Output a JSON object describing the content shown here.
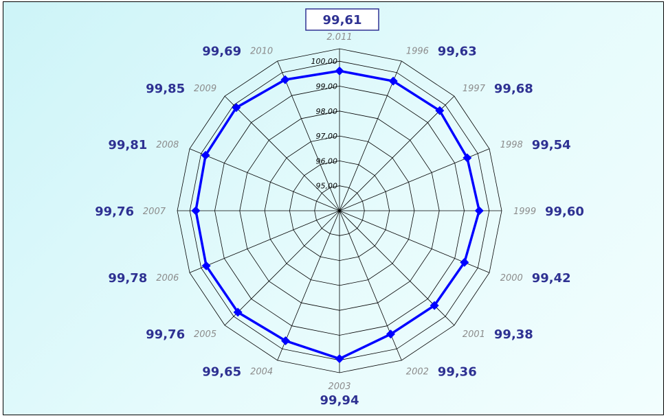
{
  "chart_data": {
    "type": "radar",
    "categories": [
      "2.011",
      "1996",
      "1997",
      "1998",
      "1999",
      "2000",
      "2001",
      "2002",
      "2003",
      "2004",
      "2005",
      "2006",
      "2007",
      "2008",
      "2009",
      "2010"
    ],
    "values": [
      99.61,
      99.63,
      99.68,
      99.54,
      99.6,
      99.42,
      99.38,
      99.36,
      99.94,
      99.65,
      99.76,
      99.78,
      99.76,
      99.81,
      99.85,
      99.69
    ],
    "value_labels": [
      "99,61",
      "99,63",
      "99,68",
      "99,54",
      "99,60",
      "99,42",
      "99,38",
      "99,36",
      "99,94",
      "99,65",
      "99,76",
      "99,78",
      "99,76",
      "99,81",
      "99,85",
      "99,69"
    ],
    "radial_ticks": [
      95,
      96,
      97,
      98,
      99,
      100
    ],
    "radial_tick_labels": [
      "95,00",
      "96,00",
      "97,00",
      "98,00",
      "99,00",
      "100,00"
    ],
    "rlim": [
      94,
      100.5
    ],
    "highlighted_category": "2.011",
    "grid": true,
    "legend": "none",
    "colors": {
      "series": "#0000ff",
      "value_label": "#2e3192",
      "category_label": "#8c8c8c",
      "grid": "#000000"
    }
  }
}
